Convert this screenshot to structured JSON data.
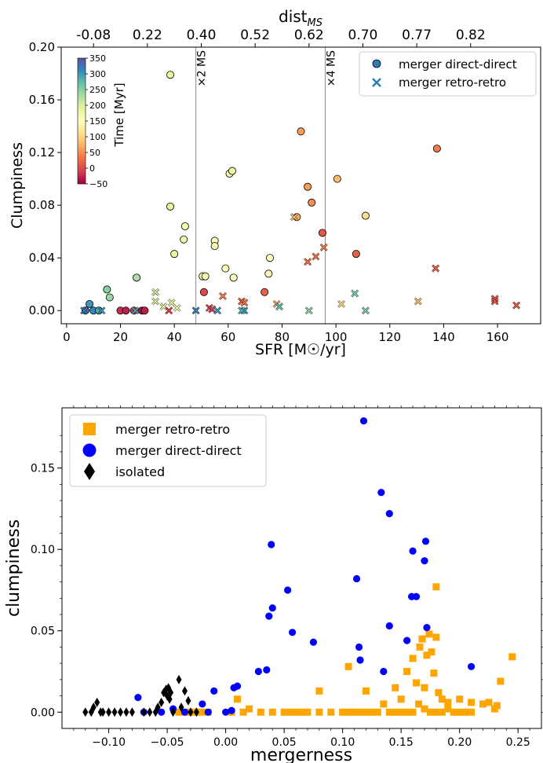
{
  "chart_data": [
    {
      "type": "scatter",
      "xlabel": "SFR [M☉/yr]",
      "ylabel": "Clumpiness",
      "top_axis_label": "dist",
      "top_axis_label_sub": "MS",
      "top_axis_ticks": [
        "-0.08",
        "0.22",
        "0.40",
        "0.52",
        "0.62",
        "0.70",
        "0.77",
        "0.82"
      ],
      "top_axis_tick_positions": [
        10,
        30,
        50,
        70,
        90,
        110,
        130,
        150
      ],
      "xlim": [
        -2,
        176
      ],
      "ylim": [
        -0.01,
        0.2
      ],
      "xticks": [
        0,
        20,
        40,
        60,
        80,
        100,
        120,
        140,
        160
      ],
      "yticks": [
        0.0,
        0.04,
        0.08,
        0.12,
        0.16,
        0.2
      ],
      "ytick_labels": [
        "0.00",
        "0.04",
        "0.08",
        "0.12",
        "0.16",
        "0.20"
      ],
      "vlines": [
        {
          "x": 48,
          "label": "×2 MS"
        },
        {
          "x": 96,
          "label": "×4 MS"
        }
      ],
      "colorbar": {
        "label": "Time [Myr]",
        "min": -50,
        "max": 350,
        "ticks": [
          "350",
          "300",
          "250",
          "200",
          "150",
          "100",
          "50",
          "0",
          "−50"
        ],
        "tick_values": [
          350,
          300,
          250,
          200,
          150,
          100,
          50,
          0,
          -50
        ],
        "colormap": "Spectral"
      },
      "legend": {
        "position": "top-right",
        "entries": [
          {
            "label": "merger direct-direct",
            "marker": "circle",
            "color": "#2a7fb5"
          },
          {
            "label": "merger retro-retro",
            "marker": "x",
            "color": "#2a7fb5"
          }
        ]
      },
      "series": [
        {
          "name": "merger direct-direct",
          "marker": "circle",
          "points": [
            [
              7,
              0.0,
              330
            ],
            [
              8.5,
              0.005,
              300
            ],
            [
              10,
              0.0,
              310
            ],
            [
              12,
              0.0,
              290
            ],
            [
              15,
              0.016,
              250
            ],
            [
              16,
              0.01,
              240
            ],
            [
              20,
              0.0,
              -20
            ],
            [
              22,
              0.0,
              -30
            ],
            [
              25,
              0.0,
              -10
            ],
            [
              26,
              0.025,
              230
            ],
            [
              28,
              0.0,
              -40
            ],
            [
              29,
              0.0,
              -30
            ],
            [
              38.5,
              0.179,
              190
            ],
            [
              38.5,
              0.079,
              190
            ],
            [
              40,
              0.043,
              180
            ],
            [
              43.5,
              0.054,
              175
            ],
            [
              44,
              0.064,
              170
            ],
            [
              51,
              0.014,
              0
            ],
            [
              50.5,
              0.026,
              160
            ],
            [
              51.5,
              0.026,
              165
            ],
            [
              55,
              0.053,
              160
            ],
            [
              55,
              0.049,
              162
            ],
            [
              59,
              0.032,
              150
            ],
            [
              60.5,
              0.104,
              175
            ],
            [
              61.5,
              0.106,
              172
            ],
            [
              62,
              0.025,
              150
            ],
            [
              73.5,
              0.014,
              20
            ],
            [
              75,
              0.028,
              140
            ],
            [
              75.5,
              0.04,
              150
            ],
            [
              85.5,
              0.071,
              70
            ],
            [
              87,
              0.136,
              60
            ],
            [
              89.5,
              0.094,
              60
            ],
            [
              91,
              0.082,
              50
            ],
            [
              95,
              0.059,
              10
            ],
            [
              100.5,
              0.1,
              80
            ],
            [
              107.5,
              0.043,
              20
            ],
            [
              111,
              0.072,
              110
            ],
            [
              137.5,
              0.123,
              40
            ]
          ]
        },
        {
          "name": "merger retro-retro",
          "marker": "x",
          "points": [
            [
              6.5,
              0.0,
              320
            ],
            [
              13,
              0.0,
              300
            ],
            [
              25.5,
              0.0,
              290
            ],
            [
              33,
              0.007,
              200
            ],
            [
              33,
              0.014,
              200
            ],
            [
              36,
              0.003,
              180
            ],
            [
              38,
              0.0,
              -10
            ],
            [
              39,
              0.006,
              190
            ],
            [
              41,
              0.002,
              180
            ],
            [
              48,
              0.0,
              320
            ],
            [
              53,
              0.002,
              0
            ],
            [
              54,
              0.001,
              -10
            ],
            [
              56,
              0.0,
              300
            ],
            [
              58,
              0.011,
              40
            ],
            [
              65,
              0.007,
              20
            ],
            [
              66,
              0.006,
              30
            ],
            [
              66,
              0.0,
              300
            ],
            [
              65,
              0.0,
              280
            ],
            [
              78,
              0.005,
              60
            ],
            [
              79,
              0.003,
              270
            ],
            [
              84.5,
              0.071,
              80
            ],
            [
              89.5,
              0.037,
              30
            ],
            [
              92.5,
              0.041,
              30
            ],
            [
              95.5,
              0.048,
              40
            ],
            [
              90,
              0.0,
              250
            ],
            [
              102,
              0.005,
              100
            ],
            [
              107,
              0.013,
              260
            ],
            [
              111,
              0.0,
              260
            ],
            [
              130.5,
              0.007,
              80
            ],
            [
              137,
              0.032,
              20
            ],
            [
              159,
              0.009,
              10
            ],
            [
              159,
              0.007,
              10
            ],
            [
              167,
              0.004,
              20
            ]
          ]
        }
      ]
    },
    {
      "type": "scatter",
      "xlabel": "mergerness",
      "ylabel": "clumpiness",
      "xlim": [
        -0.14,
        0.27
      ],
      "ylim": [
        -0.01,
        0.187
      ],
      "xticks": [
        -0.1,
        -0.05,
        0.0,
        0.05,
        0.1,
        0.15,
        0.2,
        0.25
      ],
      "xtick_labels": [
        "−0.10",
        "−0.05",
        "0.00",
        "0.05",
        "0.10",
        "0.15",
        "0.20",
        "0.25"
      ],
      "yticks": [
        0.0,
        0.05,
        0.1,
        0.15
      ],
      "ytick_labels": [
        "0.00",
        "0.05",
        "0.10",
        "0.15"
      ],
      "legend": {
        "position": "top-left",
        "entries": [
          {
            "label": "merger retro-retro",
            "marker": "square",
            "color": "#ffa500"
          },
          {
            "label": "merger direct-direct",
            "marker": "circle",
            "color": "#0000ff"
          },
          {
            "label": "isolated",
            "marker": "diamond",
            "color": "#000000"
          }
        ]
      },
      "series": [
        {
          "name": "merger retro-retro",
          "marker": "square",
          "color": "#ffa500",
          "points": [
            [
              -0.04,
              0.0
            ],
            [
              -0.035,
              0.0
            ],
            [
              -0.03,
              0.0
            ],
            [
              -0.025,
              0.0
            ],
            [
              -0.02,
              0.0
            ],
            [
              -0.015,
              0.0
            ],
            [
              0.005,
              0.0
            ],
            [
              0.01,
              0.008
            ],
            [
              0.015,
              0.0
            ],
            [
              0.02,
              0.002
            ],
            [
              0.03,
              0.0
            ],
            [
              0.04,
              0.0
            ],
            [
              0.05,
              0.0
            ],
            [
              0.055,
              0.0
            ],
            [
              0.06,
              0.0
            ],
            [
              0.065,
              0.0
            ],
            [
              0.07,
              0.0
            ],
            [
              0.08,
              0.0
            ],
            [
              0.09,
              0.0
            ],
            [
              0.1,
              0.0
            ],
            [
              0.105,
              0.0
            ],
            [
              0.11,
              0.0
            ],
            [
              0.115,
              0.0
            ],
            [
              0.12,
              0.0
            ],
            [
              0.125,
              0.0
            ],
            [
              0.13,
              0.0
            ],
            [
              0.135,
              0.005
            ],
            [
              0.14,
              0.0
            ],
            [
              0.145,
              0.0
            ],
            [
              0.15,
              0.0
            ],
            [
              0.155,
              0.0
            ],
            [
              0.16,
              0.0
            ],
            [
              0.165,
              0.005
            ],
            [
              0.17,
              0.002
            ],
            [
              0.175,
              0.0
            ],
            [
              0.18,
              0.0
            ],
            [
              0.185,
              0.0
            ],
            [
              0.19,
              0.002
            ],
            [
              0.195,
              0.0
            ],
            [
              0.2,
              0.0
            ],
            [
              0.205,
              0.0
            ],
            [
              0.21,
              0.0
            ],
            [
              0.22,
              0.005
            ],
            [
              0.23,
              0.002
            ],
            [
              0.235,
              0.019
            ],
            [
              0.245,
              0.034
            ],
            [
              0.08,
              0.013
            ],
            [
              0.105,
              0.028
            ],
            [
              0.12,
              0.013
            ],
            [
              0.145,
              0.015
            ],
            [
              0.15,
              0.008
            ],
            [
              0.155,
              0.025
            ],
            [
              0.16,
              0.033
            ],
            [
              0.163,
              0.018
            ],
            [
              0.166,
              0.04
            ],
            [
              0.168,
              0.045
            ],
            [
              0.17,
              0.015
            ],
            [
              0.172,
              0.035
            ],
            [
              0.174,
              0.048
            ],
            [
              0.176,
              0.037
            ],
            [
              0.178,
              0.024
            ],
            [
              0.18,
              0.046
            ],
            [
              0.18,
              0.077
            ],
            [
              0.182,
              0.012
            ],
            [
              0.185,
              0.008
            ],
            [
              0.19,
              0.006
            ],
            [
              0.2,
              0.008
            ],
            [
              0.21,
              0.006
            ],
            [
              0.225,
              0.006
            ],
            [
              0.232,
              0.004
            ]
          ]
        },
        {
          "name": "merger direct-direct",
          "marker": "circle",
          "color": "#0000ff",
          "points": [
            [
              -0.075,
              0.009
            ],
            [
              -0.07,
              0.0
            ],
            [
              -0.055,
              0.0
            ],
            [
              -0.045,
              0.002
            ],
            [
              -0.035,
              0.0
            ],
            [
              -0.02,
              0.005
            ],
            [
              -0.015,
              0.0
            ],
            [
              -0.01,
              0.013
            ],
            [
              0.0,
              0.0
            ],
            [
              0.005,
              0.001
            ],
            [
              0.007,
              0.015
            ],
            [
              0.01,
              0.016
            ],
            [
              0.028,
              0.025
            ],
            [
              0.035,
              0.026
            ],
            [
              0.037,
              0.059
            ],
            [
              0.039,
              0.103
            ],
            [
              0.04,
              0.064
            ],
            [
              0.053,
              0.075
            ],
            [
              0.057,
              0.049
            ],
            [
              0.075,
              0.043
            ],
            [
              0.112,
              0.082
            ],
            [
              0.114,
              0.04
            ],
            [
              0.115,
              0.032
            ],
            [
              0.118,
              0.179
            ],
            [
              0.133,
              0.135
            ],
            [
              0.135,
              0.025
            ],
            [
              0.14,
              0.122
            ],
            [
              0.14,
              0.053
            ],
            [
              0.155,
              0.044
            ],
            [
              0.159,
              0.071
            ],
            [
              0.16,
              0.099
            ],
            [
              0.163,
              0.071
            ],
            [
              0.17,
              0.093
            ],
            [
              0.171,
              0.105
            ],
            [
              0.172,
              0.052
            ],
            [
              0.21,
              0.028
            ]
          ]
        },
        {
          "name": "isolated",
          "marker": "diamond",
          "color": "#000000",
          "points": [
            [
              -0.12,
              0.0
            ],
            [
              -0.115,
              0.0
            ],
            [
              -0.113,
              0.003
            ],
            [
              -0.11,
              0.006
            ],
            [
              -0.107,
              0.0
            ],
            [
              -0.105,
              0.0
            ],
            [
              -0.1,
              0.0
            ],
            [
              -0.095,
              0.0
            ],
            [
              -0.09,
              0.0
            ],
            [
              -0.085,
              0.0
            ],
            [
              -0.08,
              0.0
            ],
            [
              -0.07,
              0.0
            ],
            [
              -0.065,
              0.0
            ],
            [
              -0.06,
              0.0
            ],
            [
              -0.058,
              0.003
            ],
            [
              -0.055,
              0.006
            ],
            [
              -0.053,
              0.012
            ],
            [
              -0.051,
              0.014
            ],
            [
              -0.05,
              0.01
            ],
            [
              -0.049,
              0.015
            ],
            [
              -0.048,
              0.008
            ],
            [
              -0.047,
              0.012
            ],
            [
              -0.045,
              0.0
            ],
            [
              -0.04,
              0.02
            ],
            [
              -0.038,
              0.003
            ],
            [
              -0.035,
              0.013
            ],
            [
              -0.032,
              0.007
            ],
            [
              -0.03,
              0.0
            ],
            [
              -0.025,
              0.0
            ]
          ]
        }
      ]
    }
  ]
}
